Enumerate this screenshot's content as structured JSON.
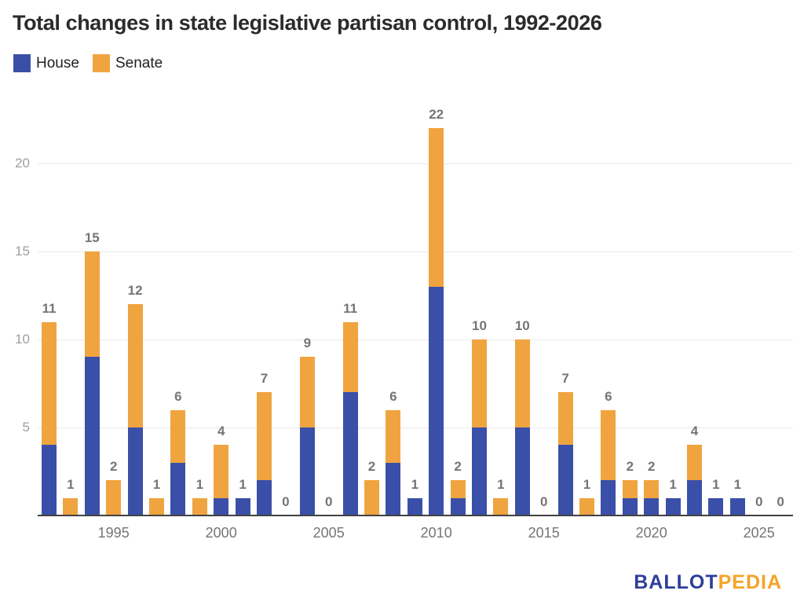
{
  "title": "Total changes in state legislative partisan control, 1992-2026",
  "legend": {
    "items": [
      {
        "label": "House",
        "color": "#3a50a8"
      },
      {
        "label": "Senate",
        "color": "#f0a43f"
      }
    ]
  },
  "colors": {
    "house": "#3a50a8",
    "senate": "#f0a43f",
    "gridline": "#e8e8e8",
    "axis_line": "#424242",
    "value_label": "#757575",
    "x_tick": "#757575",
    "y_tick": "#9e9e9e",
    "title": "#2b2b2b",
    "logo_blue": "#2d3e99",
    "logo_orange": "#f5a327"
  },
  "chart_data": {
    "type": "bar",
    "stacked": true,
    "title": "Total changes in state legislative partisan control, 1992-2026",
    "categories": [
      "1992",
      "1993",
      "1994",
      "1995",
      "1996",
      "1997",
      "1998",
      "1999",
      "2000",
      "2001",
      "2002",
      "2003",
      "2004",
      "2005",
      "2006",
      "2007",
      "2008",
      "2009",
      "2010",
      "2011",
      "2012",
      "2013",
      "2014",
      "2015",
      "2016",
      "2017",
      "2018",
      "2019",
      "2020",
      "2021",
      "2022",
      "2023",
      "2024",
      "2025",
      "2026"
    ],
    "series": [
      {
        "name": "House",
        "color": "#3a50a8",
        "values": [
          4,
          0,
          9,
          0,
          5,
          0,
          3,
          0,
          1,
          1,
          2,
          0,
          5,
          0,
          7,
          0,
          3,
          1,
          13,
          1,
          5,
          0,
          5,
          0,
          4,
          0,
          2,
          1,
          1,
          1,
          2,
          1,
          1,
          0,
          0
        ]
      },
      {
        "name": "Senate",
        "color": "#f0a43f",
        "values": [
          7,
          1,
          6,
          2,
          7,
          1,
          3,
          1,
          3,
          0,
          5,
          0,
          4,
          0,
          4,
          2,
          3,
          0,
          9,
          1,
          5,
          1,
          5,
          0,
          3,
          1,
          4,
          1,
          1,
          0,
          2,
          0,
          0,
          0,
          0
        ]
      }
    ],
    "totals": [
      11,
      1,
      15,
      2,
      12,
      1,
      6,
      1,
      4,
      1,
      7,
      0,
      9,
      0,
      11,
      2,
      6,
      1,
      22,
      2,
      10,
      1,
      10,
      0,
      7,
      1,
      6,
      2,
      2,
      1,
      4,
      1,
      1,
      0,
      0
    ],
    "x_tick_labels": [
      "1995",
      "2000",
      "2005",
      "2010",
      "2015",
      "2020",
      "2025"
    ],
    "y_ticks": [
      5,
      10,
      15,
      20
    ],
    "ylim": [
      0,
      23
    ],
    "grid": true,
    "legend_position": "top-left",
    "xlabel": "",
    "ylabel": ""
  },
  "logo": {
    "part1": "BALLOT",
    "part2": "PEDIA"
  }
}
